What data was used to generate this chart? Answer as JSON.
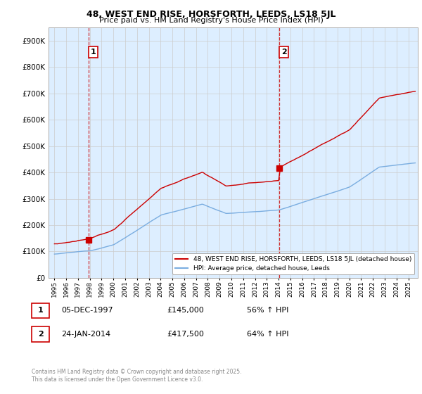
{
  "title_line1": "48, WEST END RISE, HORSFORTH, LEEDS, LS18 5JL",
  "title_line2": "Price paid vs. HM Land Registry's House Price Index (HPI)",
  "legend_entry1": "48, WEST END RISE, HORSFORTH, LEEDS, LS18 5JL (detached house)",
  "legend_entry2": "HPI: Average price, detached house, Leeds",
  "annotation1_date": "05-DEC-1997",
  "annotation1_price": "£145,000",
  "annotation1_hpi": "56% ↑ HPI",
  "annotation2_date": "24-JAN-2014",
  "annotation2_price": "£417,500",
  "annotation2_hpi": "64% ↑ HPI",
  "footnote_line1": "Contains HM Land Registry data © Crown copyright and database right 2025.",
  "footnote_line2": "This data is licensed under the Open Government Licence v3.0.",
  "sale_color": "#cc0000",
  "hpi_color": "#7aade0",
  "vline_color": "#cc0000",
  "plot_bg_color": "#ddeeff",
  "sale1_x": 1997.92,
  "sale1_y": 145000,
  "sale2_x": 2014.07,
  "sale2_y": 417500,
  "ylim_max": 950000,
  "yticks": [
    0,
    100000,
    200000,
    300000,
    400000,
    500000,
    600000,
    700000,
    800000,
    900000
  ],
  "xlim_min": 1994.5,
  "xlim_max": 2025.8,
  "background_color": "#ffffff",
  "grid_color": "#cccccc"
}
